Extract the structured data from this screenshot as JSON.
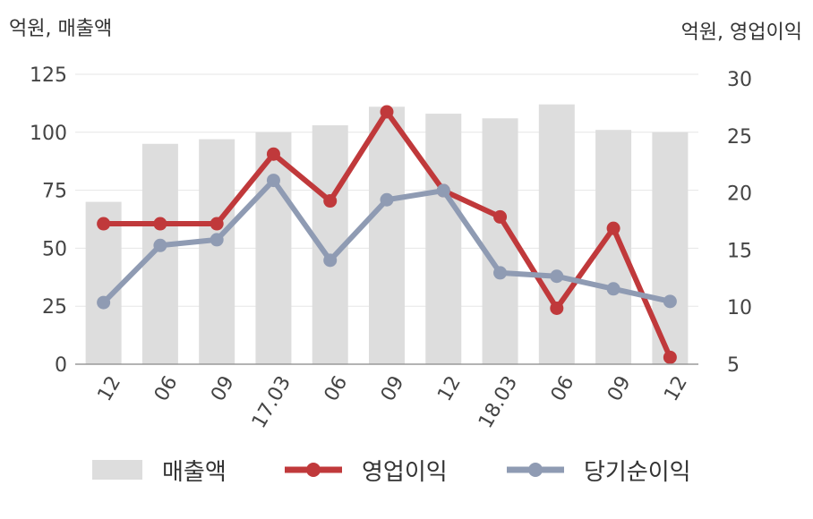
{
  "left_axis_unit": "억원, 매출액",
  "right_axis_unit": "억원, 영업이익",
  "chart_data": {
    "type": "bar+line",
    "categories": [
      "12",
      "06",
      "09",
      "17.03",
      "06",
      "09",
      "12",
      "18.03",
      "06",
      "09",
      "12"
    ],
    "bar_series": {
      "name": "매출액",
      "axis": "left",
      "color": "#dddddd",
      "values": [
        70,
        95,
        97,
        100,
        103,
        111,
        108,
        106,
        112,
        101,
        100
      ]
    },
    "line_series": [
      {
        "name": "영업이익",
        "axis": "right",
        "color": "#c0393b",
        "values": [
          17.3,
          17.3,
          17.3,
          23.4,
          19.3,
          27.1,
          20.2,
          17.9,
          9.9,
          16.9,
          5.6
        ]
      },
      {
        "name": "당기순이익",
        "axis": "right",
        "color": "#8f9bb3",
        "values": [
          10.4,
          15.4,
          15.9,
          21.1,
          14.1,
          19.4,
          20.2,
          13.0,
          12.7,
          11.6,
          10.5
        ]
      }
    ],
    "y_left": {
      "min": 0,
      "max": 125,
      "ticks": [
        0,
        25,
        50,
        75,
        100,
        125
      ]
    },
    "y_right": {
      "min": 5,
      "max": 30,
      "ticks": [
        5,
        10,
        15,
        20,
        25,
        30
      ]
    },
    "grid": true,
    "legend_position": "bottom"
  }
}
